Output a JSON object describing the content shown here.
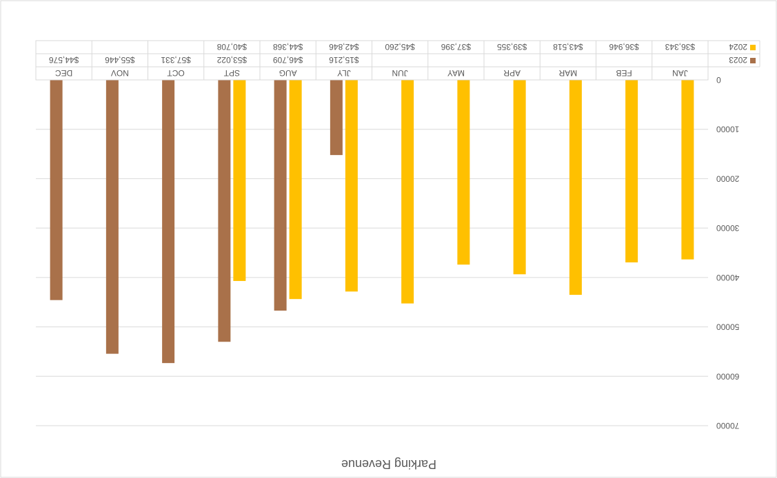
{
  "chart_data": {
    "type": "bar",
    "title": "Parking Revenue",
    "categories": [
      "JAN",
      "FEB",
      "MAR",
      "APR",
      "MAY",
      "JUN",
      "JLY",
      "AUG",
      "SPT",
      "OCT",
      "NOV",
      "DEC"
    ],
    "series": [
      {
        "name": "2024",
        "color": "#FFC000",
        "values": [
          36343,
          36946,
          43518,
          39355,
          37396,
          45260,
          42846,
          44368,
          40708,
          null,
          null,
          null
        ],
        "labels": [
          "$36,343",
          "$36,946",
          "$43,518",
          "$39,355",
          "$37,396",
          "$45,260",
          "$42,846",
          "$44,368",
          "$40,708",
          "",
          "",
          ""
        ]
      },
      {
        "name": "2023",
        "color": "#A9714A",
        "values": [
          null,
          null,
          null,
          null,
          null,
          null,
          15216,
          46709,
          53022,
          57331,
          55446,
          44576
        ],
        "labels": [
          "",
          "",
          "",
          "",
          "",
          "",
          "$15,216",
          "$46,709",
          "$53,022",
          "$57,331",
          "$55,446",
          "$44,576"
        ]
      }
    ],
    "ylim": [
      0,
      70000
    ],
    "y_ticks": [
      "0",
      "10000",
      "20000",
      "30000",
      "40000",
      "50000",
      "60000",
      "70000"
    ],
    "y_tick_values": [
      0,
      10000,
      20000,
      30000,
      40000,
      50000,
      60000,
      70000
    ],
    "grid": true,
    "legend": "data-table",
    "orientation": "rotated-180"
  }
}
